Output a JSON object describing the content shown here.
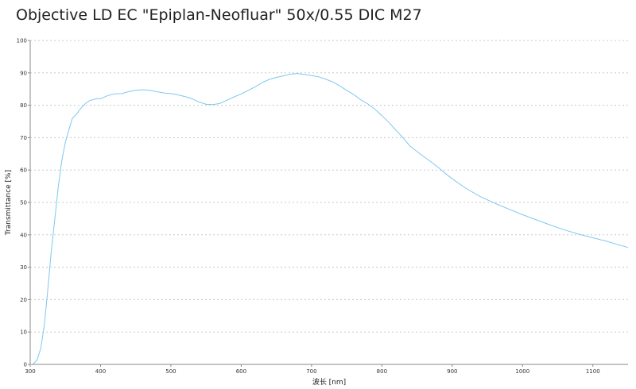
{
  "chart_data": {
    "type": "line",
    "title": "Objective LD EC \"Epiplan-Neofluar\" 50x/0.55 DIC M27",
    "xlabel": "波长 [nm]",
    "ylabel": "Transmittance [%]",
    "xlim": [
      300,
      1150
    ],
    "ylim": [
      0,
      100
    ],
    "x_ticks": [
      300,
      400,
      500,
      600,
      700,
      800,
      900,
      1000,
      1100
    ],
    "y_ticks": [
      0,
      10,
      20,
      30,
      40,
      50,
      60,
      70,
      80,
      90,
      100
    ],
    "grid": "horizontal dotted",
    "line_color": "#7ec8f0",
    "series": [
      {
        "x": [
          300,
          305,
          310,
          315,
          320,
          325,
          330,
          335,
          340,
          345,
          350,
          355,
          360,
          365,
          370,
          375,
          380,
          385,
          390,
          395,
          400,
          410,
          420,
          430,
          440,
          450,
          460,
          470,
          480,
          490,
          500,
          510,
          520,
          530,
          540,
          550,
          560,
          570,
          580,
          590,
          600,
          610,
          620,
          630,
          640,
          650,
          660,
          670,
          680,
          690,
          700,
          710,
          720,
          730,
          740,
          750,
          760,
          770,
          780,
          790,
          800,
          810,
          820,
          830,
          840,
          850,
          860,
          870,
          880,
          890,
          900,
          920,
          940,
          960,
          980,
          1000,
          1020,
          1040,
          1060,
          1080,
          1100,
          1120,
          1140,
          1150
        ],
        "values": [
          0,
          0.2,
          1.5,
          5,
          12,
          23,
          35,
          45,
          55,
          63,
          68.5,
          72.5,
          76,
          77,
          78.5,
          79.8,
          80.8,
          81.5,
          81.8,
          82,
          82,
          83,
          83.5,
          83.6,
          84.2,
          84.6,
          84.8,
          84.6,
          84.2,
          83.8,
          83.6,
          83.2,
          82.7,
          82,
          81,
          80.3,
          80.2,
          80.6,
          81.6,
          82.6,
          83.5,
          84.6,
          85.7,
          87,
          88,
          88.6,
          89.1,
          89.6,
          89.8,
          89.5,
          89.2,
          88.8,
          88.1,
          87.2,
          86,
          84.6,
          83.3,
          81.7,
          80.4,
          78.8,
          76.8,
          74.7,
          72.3,
          70,
          67.4,
          65.7,
          64.1,
          62.5,
          60.8,
          59,
          57.3,
          54.3,
          51.8,
          49.8,
          48,
          46.2,
          44.6,
          43,
          41.5,
          40.2,
          39.1,
          38,
          36.7,
          36.1
        ]
      }
    ]
  }
}
